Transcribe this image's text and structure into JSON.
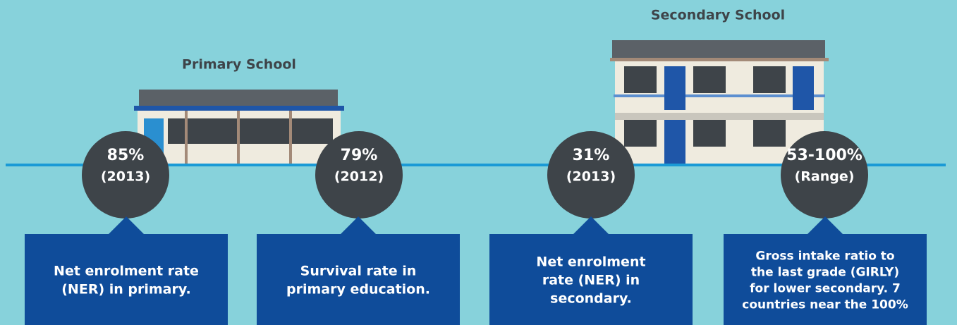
{
  "headings": {
    "primary": "Primary School",
    "secondary": "Secondary School"
  },
  "stats": [
    {
      "value": "85%",
      "note": "(2013)",
      "lines": [
        "Net enrolment rate",
        "(NER) in primary."
      ]
    },
    {
      "value": "79%",
      "note": "(2012)",
      "lines": [
        "Survival rate in",
        "primary education."
      ]
    },
    {
      "value": "31%",
      "note": "(2013)",
      "lines": [
        "Net enrolment",
        "rate (NER) in",
        "secondary."
      ]
    },
    {
      "value": "53-100%",
      "note": "(Range)",
      "lines": [
        "Gross intake ratio to",
        "the last grade (GIRLY)",
        "for lower secondary. 7",
        "countries near the 100%"
      ]
    }
  ]
}
